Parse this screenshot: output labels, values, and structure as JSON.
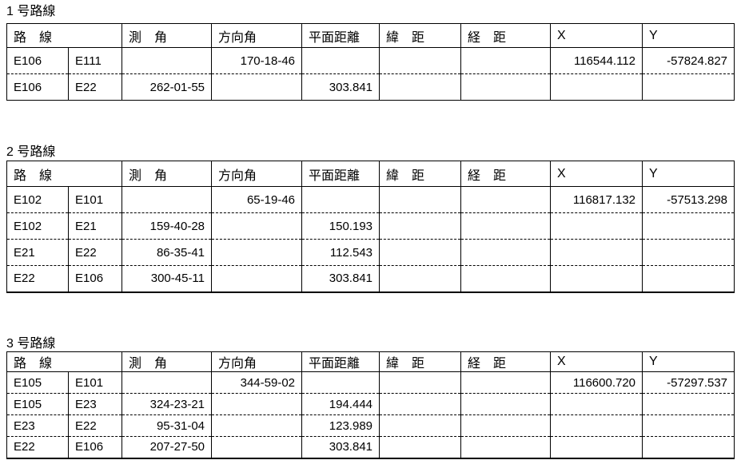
{
  "page": {
    "background_color": "#ffffff",
    "text_color": "#000000",
    "border_color": "#000000"
  },
  "headers": {
    "route": "路　線",
    "angle": "測　角",
    "direction": "方向角",
    "distance": "平面距離",
    "lat": "緯　距",
    "dep": "経　距",
    "x": "X",
    "y": "Y"
  },
  "tables": [
    {
      "title": "1 号路線",
      "rows": [
        {
          "from": "E106",
          "to": "E111",
          "angle": "",
          "direction": "170-18-46",
          "distance": "",
          "lat": "",
          "dep": "",
          "x": "116544.112",
          "y": "-57824.827"
        },
        {
          "from": "E106",
          "to": "E22",
          "angle": "262-01-55",
          "direction": "",
          "distance": "303.841",
          "lat": "",
          "dep": "",
          "x": "",
          "y": ""
        }
      ]
    },
    {
      "title": "2 号路線",
      "rows": [
        {
          "from": "E102",
          "to": "E101",
          "angle": "",
          "direction": "65-19-46",
          "distance": "",
          "lat": "",
          "dep": "",
          "x": "116817.132",
          "y": "-57513.298"
        },
        {
          "from": "E102",
          "to": "E21",
          "angle": "159-40-28",
          "direction": "",
          "distance": "150.193",
          "lat": "",
          "dep": "",
          "x": "",
          "y": ""
        },
        {
          "from": "E21",
          "to": "E22",
          "angle": "86-35-41",
          "direction": "",
          "distance": "112.543",
          "lat": "",
          "dep": "",
          "x": "",
          "y": ""
        },
        {
          "from": "E22",
          "to": "E106",
          "angle": "300-45-11",
          "direction": "",
          "distance": "303.841",
          "lat": "",
          "dep": "",
          "x": "",
          "y": ""
        }
      ]
    },
    {
      "title": "3 号路線",
      "rows": [
        {
          "from": "E105",
          "to": "E101",
          "angle": "",
          "direction": "344-59-02",
          "distance": "",
          "lat": "",
          "dep": "",
          "x": "116600.720",
          "y": "-57297.537"
        },
        {
          "from": "E105",
          "to": "E23",
          "angle": "324-23-21",
          "direction": "",
          "distance": "194.444",
          "lat": "",
          "dep": "",
          "x": "",
          "y": ""
        },
        {
          "from": "E23",
          "to": "E22",
          "angle": "95-31-04",
          "direction": "",
          "distance": "123.989",
          "lat": "",
          "dep": "",
          "x": "",
          "y": ""
        },
        {
          "from": "E22",
          "to": "E106",
          "angle": "207-27-50",
          "direction": "",
          "distance": "303.841",
          "lat": "",
          "dep": "",
          "x": "",
          "y": ""
        }
      ]
    }
  ]
}
